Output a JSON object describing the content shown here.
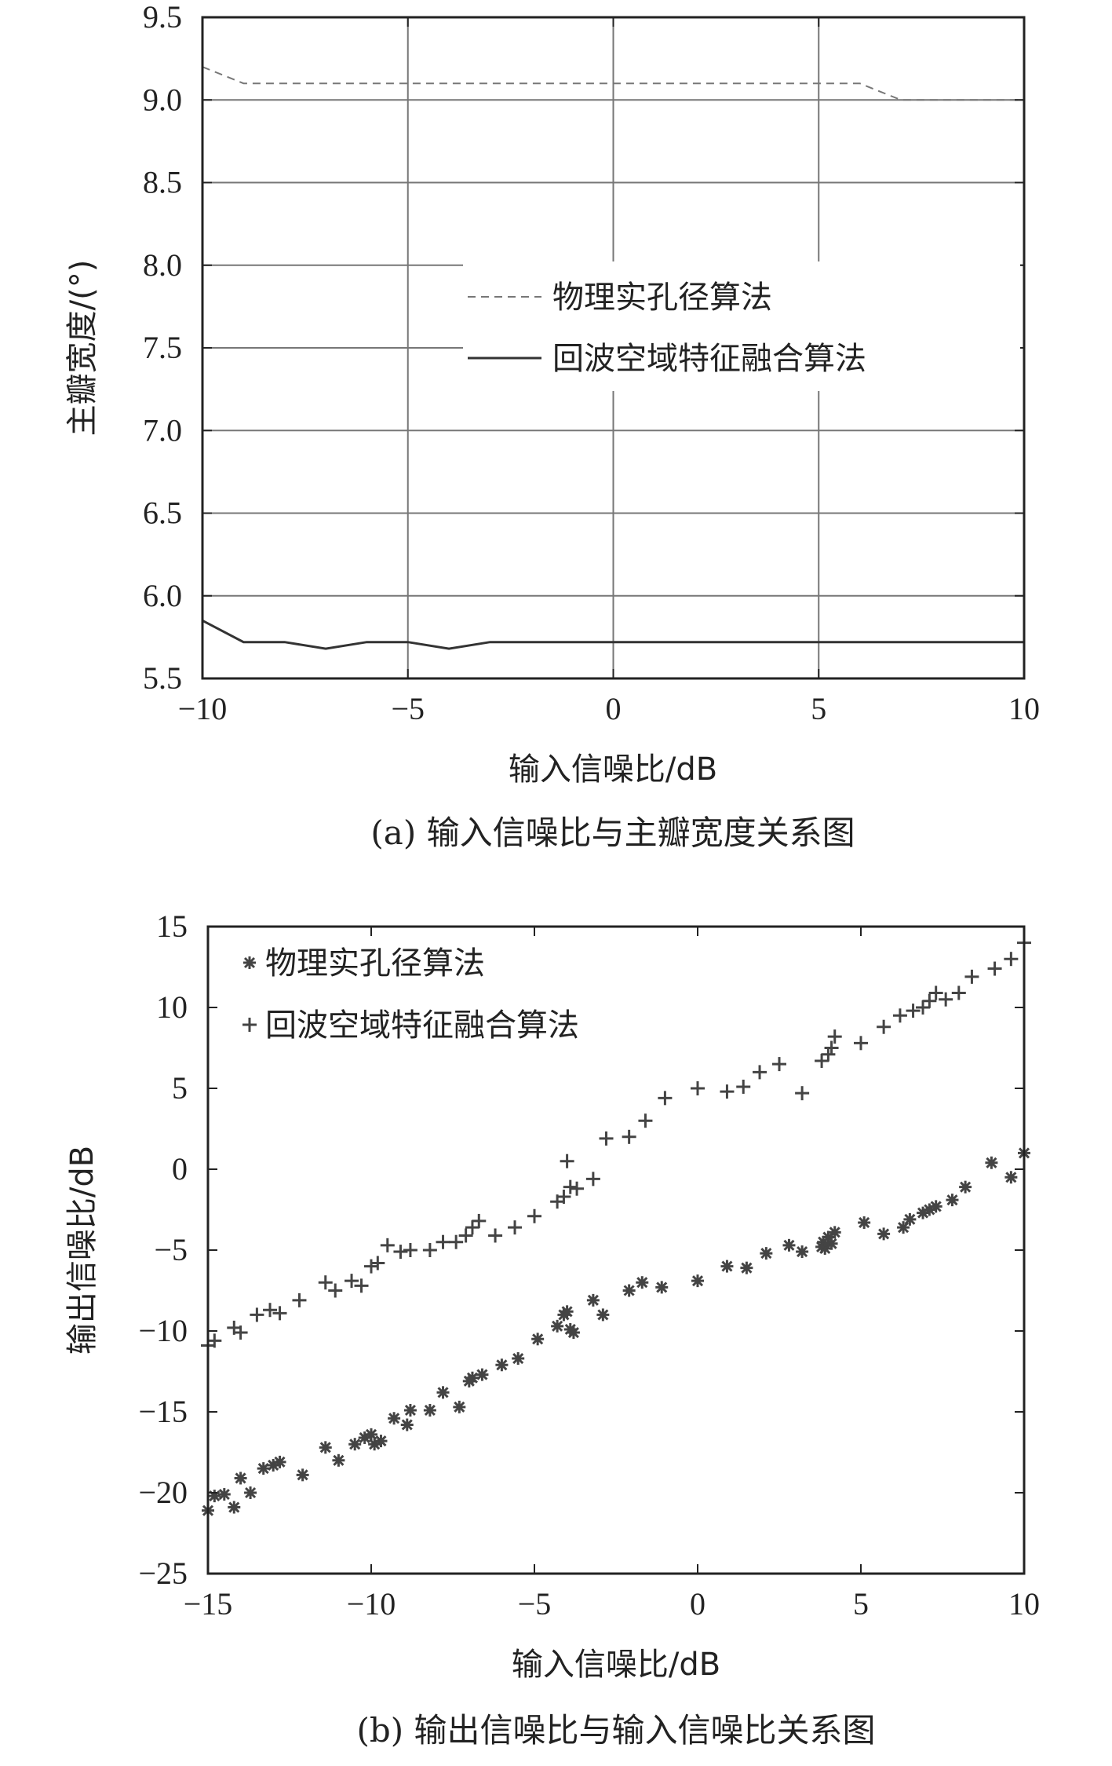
{
  "chart_data": [
    {
      "panel": "a",
      "type": "line",
      "caption": "(a) 输入信噪比与主瓣宽度关系图",
      "xlabel": "输入信噪比/dB",
      "ylabel": "主瓣宽度/(°)",
      "xlim": [
        -10,
        10
      ],
      "ylim": [
        5.5,
        9.5
      ],
      "xticks": [
        -10,
        -5,
        0,
        5,
        10
      ],
      "xtick_labels": [
        "−10",
        "−5",
        "0",
        "5",
        "10"
      ],
      "yticks": [
        5.5,
        6.0,
        6.5,
        7.0,
        7.5,
        8.0,
        8.5,
        9.0,
        9.5
      ],
      "ytick_labels": [
        "5.5",
        "6.0",
        "6.5",
        "7.0",
        "7.5",
        "8.0",
        "8.5",
        "9.0",
        "9.5"
      ],
      "grid": true,
      "legend_position": "right",
      "series": [
        {
          "name": "物理实孔径算法",
          "style": "dashed",
          "color": "#777777",
          "x": [
            -10,
            -9,
            -8,
            -7,
            -6,
            -5,
            -4,
            -3,
            -2,
            -1,
            0,
            1,
            2,
            3,
            4,
            5,
            6,
            7,
            8,
            9,
            10
          ],
          "y": [
            9.2,
            9.1,
            9.1,
            9.1,
            9.1,
            9.1,
            9.1,
            9.1,
            9.1,
            9.1,
            9.1,
            9.1,
            9.1,
            9.1,
            9.1,
            9.1,
            9.1,
            9.0,
            9.0,
            9.0,
            9.0
          ]
        },
        {
          "name": "回波空域特征融合算法",
          "style": "solid",
          "color": "#333333",
          "x": [
            -10,
            -9,
            -8,
            -7,
            -6,
            -5,
            -4,
            -3,
            -2,
            -1,
            0,
            1,
            2,
            3,
            4,
            5,
            6,
            7,
            8,
            9,
            10
          ],
          "y": [
            5.85,
            5.72,
            5.72,
            5.68,
            5.72,
            5.72,
            5.68,
            5.72,
            5.72,
            5.72,
            5.72,
            5.72,
            5.72,
            5.72,
            5.72,
            5.72,
            5.72,
            5.72,
            5.72,
            5.72,
            5.72
          ]
        }
      ]
    },
    {
      "panel": "b",
      "type": "scatter",
      "caption": "(b) 输出信噪比与输入信噪比关系图",
      "xlabel": "输入信噪比/dB",
      "ylabel": "输出信噪比/dB",
      "xlim": [
        -15,
        10
      ],
      "ylim": [
        -25,
        15
      ],
      "xticks": [
        -15,
        -10,
        -5,
        0,
        5,
        10
      ],
      "xtick_labels": [
        "−15",
        "−10",
        "−5",
        "0",
        "5",
        "10"
      ],
      "yticks": [
        -25,
        -20,
        -15,
        -10,
        -5,
        0,
        5,
        10,
        15
      ],
      "ytick_labels": [
        "−25",
        "−20",
        "−15",
        "−10",
        "−5",
        "0",
        "5",
        "10",
        "15"
      ],
      "grid": false,
      "legend_position": "top-left",
      "series": [
        {
          "name": "物理实孔径算法",
          "marker": "asterisk",
          "color": "#444444",
          "points": [
            [
              -15,
              -21.1
            ],
            [
              -14.8,
              -20.2
            ],
            [
              -14.5,
              -20.1
            ],
            [
              -14.2,
              -20.9
            ],
            [
              -14,
              -19.1
            ],
            [
              -13.7,
              -20
            ],
            [
              -13.3,
              -18.5
            ],
            [
              -13,
              -18.3
            ],
            [
              -12.8,
              -18.1
            ],
            [
              -12.1,
              -18.9
            ],
            [
              -11.4,
              -17.2
            ],
            [
              -11,
              -18
            ],
            [
              -10.5,
              -17
            ],
            [
              -10.2,
              -16.6
            ],
            [
              -10,
              -16.4
            ],
            [
              -9.9,
              -17
            ],
            [
              -9.7,
              -16.8
            ],
            [
              -9.3,
              -15.4
            ],
            [
              -8.9,
              -15.8
            ],
            [
              -8.8,
              -14.9
            ],
            [
              -8.2,
              -14.9
            ],
            [
              -7.8,
              -13.8
            ],
            [
              -7.3,
              -14.7
            ],
            [
              -7,
              -13.1
            ],
            [
              -6.9,
              -12.9
            ],
            [
              -6.6,
              -12.7
            ],
            [
              -6,
              -12.1
            ],
            [
              -5.5,
              -11.7
            ],
            [
              -4.9,
              -10.5
            ],
            [
              -4.3,
              -9.7
            ],
            [
              -4.1,
              -9
            ],
            [
              -4,
              -8.8
            ],
            [
              -3.9,
              -9.9
            ],
            [
              -3.8,
              -10.1
            ],
            [
              -3.2,
              -8.1
            ],
            [
              -2.9,
              -9
            ],
            [
              -2.1,
              -7.5
            ],
            [
              -1.7,
              -7
            ],
            [
              -1.1,
              -7.3
            ],
            [
              0,
              -6.9
            ],
            [
              0.9,
              -6
            ],
            [
              1.5,
              -6.1
            ],
            [
              2.1,
              -5.2
            ],
            [
              2.8,
              -4.7
            ],
            [
              3.2,
              -5.1
            ],
            [
              3.8,
              -4.8
            ],
            [
              3.85,
              -4.5
            ],
            [
              3.9,
              -4.9
            ],
            [
              4,
              -4.2
            ],
            [
              4.1,
              -4.6
            ],
            [
              4.2,
              -3.9
            ],
            [
              5.1,
              -3.3
            ],
            [
              5.7,
              -4
            ],
            [
              6.3,
              -3.6
            ],
            [
              6.5,
              -3.1
            ],
            [
              6.9,
              -2.7
            ],
            [
              7.1,
              -2.5
            ],
            [
              7.3,
              -2.3
            ],
            [
              7.8,
              -1.9
            ],
            [
              8.2,
              -1.1
            ],
            [
              9,
              0.4
            ],
            [
              9.6,
              -0.5
            ],
            [
              10,
              1
            ]
          ]
        },
        {
          "name": "回波空域特征融合算法",
          "marker": "plus",
          "color": "#444444",
          "points": [
            [
              -15,
              -10.9
            ],
            [
              -14.8,
              -10.6
            ],
            [
              -14.2,
              -9.8
            ],
            [
              -14,
              -10.1
            ],
            [
              -13.5,
              -9
            ],
            [
              -13.1,
              -8.7
            ],
            [
              -12.8,
              -8.9
            ],
            [
              -12.2,
              -8.1
            ],
            [
              -11.4,
              -7
            ],
            [
              -11.1,
              -7.5
            ],
            [
              -10.6,
              -6.9
            ],
            [
              -10.3,
              -7.2
            ],
            [
              -10,
              -6
            ],
            [
              -9.8,
              -5.8
            ],
            [
              -9.5,
              -4.7
            ],
            [
              -9.1,
              -5.1
            ],
            [
              -8.8,
              -5
            ],
            [
              -8.2,
              -5
            ],
            [
              -7.8,
              -4.5
            ],
            [
              -7.4,
              -4.5
            ],
            [
              -7.1,
              -4.1
            ],
            [
              -6.9,
              -3.6
            ],
            [
              -6.7,
              -3.2
            ],
            [
              -6.2,
              -4.1
            ],
            [
              -5.6,
              -3.6
            ],
            [
              -5,
              -2.9
            ],
            [
              -4.3,
              -2
            ],
            [
              -4.1,
              -1.7
            ],
            [
              -4,
              0.5
            ],
            [
              -3.9,
              -1.1
            ],
            [
              -3.7,
              -1.2
            ],
            [
              -3.2,
              -0.6
            ],
            [
              -2.8,
              1.9
            ],
            [
              -2.1,
              2
            ],
            [
              -1.6,
              3
            ],
            [
              -1,
              4.4
            ],
            [
              0,
              5
            ],
            [
              0.9,
              4.8
            ],
            [
              1.4,
              5.1
            ],
            [
              1.9,
              6
            ],
            [
              2.5,
              6.5
            ],
            [
              3.2,
              4.7
            ],
            [
              3.8,
              6.7
            ],
            [
              4,
              7.1
            ],
            [
              4.1,
              7.5
            ],
            [
              4.2,
              8.2
            ],
            [
              5,
              7.8
            ],
            [
              5.7,
              8.8
            ],
            [
              6.2,
              9.5
            ],
            [
              6.6,
              9.8
            ],
            [
              6.9,
              10
            ],
            [
              7.1,
              10.4
            ],
            [
              7.3,
              10.9
            ],
            [
              7.6,
              10.5
            ],
            [
              8,
              10.9
            ],
            [
              8.4,
              11.9
            ],
            [
              9.1,
              12.4
            ],
            [
              9.6,
              13
            ],
            [
              10,
              14
            ]
          ]
        }
      ]
    }
  ]
}
